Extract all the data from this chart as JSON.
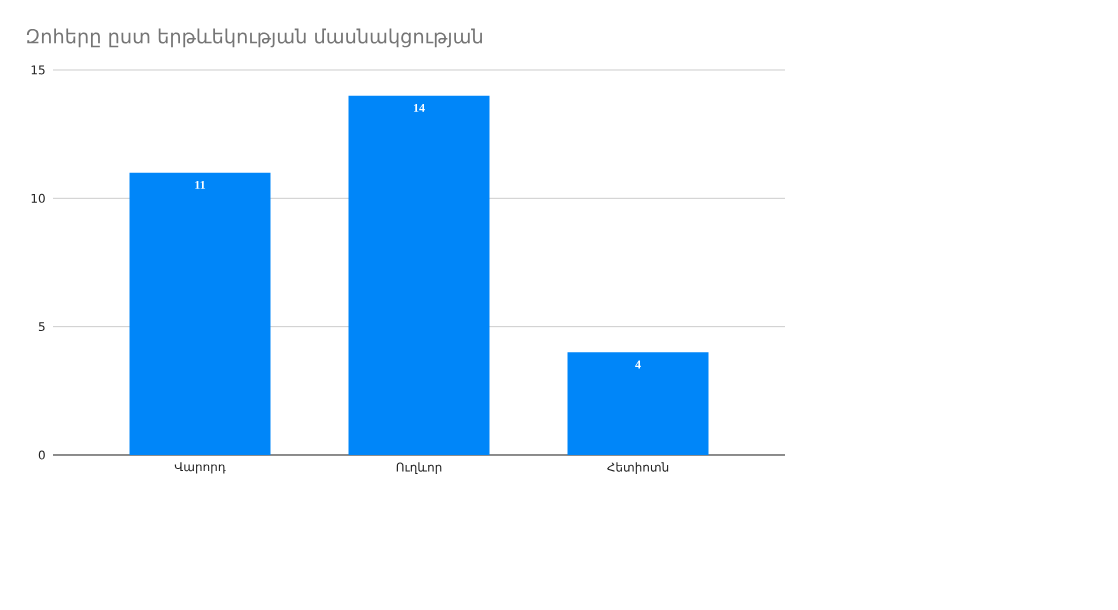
{
  "chart_data": {
    "type": "bar",
    "title": "Զոհերը ըստ երթևեկության մասնակցության",
    "categories": [
      "Վարորդ",
      "Ուղևոր",
      "Հետիոտն"
    ],
    "values": [
      11,
      14,
      4
    ],
    "color": "#0086f9",
    "ylim": [
      0,
      15
    ],
    "yticks": [
      0,
      5,
      10,
      15
    ],
    "grid": "y",
    "data_labels": true
  }
}
